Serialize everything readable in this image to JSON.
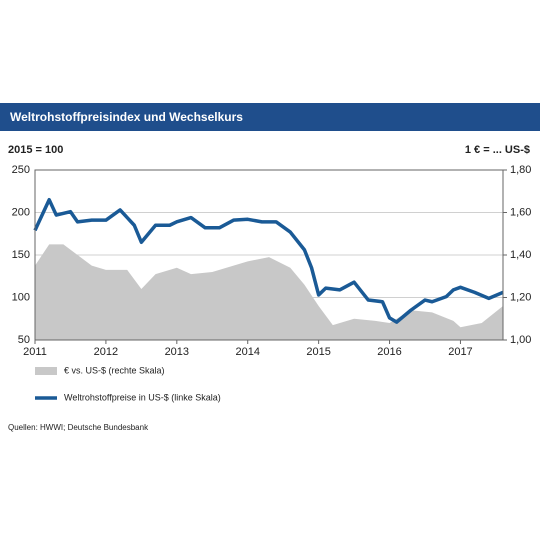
{
  "chart_data": {
    "type": "line",
    "title": "Weltrohstoffpreisindex  und Wechselkurs",
    "left_axis_label": "2015 = 100",
    "right_axis_label": "1 € = ... US-$",
    "source": "Quellen:  HWWI;  Deutsche  Bundesbank",
    "xlim": [
      2011,
      2017.6
    ],
    "xticks": [
      2011,
      2012,
      2013,
      2014,
      2015,
      2016,
      2017
    ],
    "ylim": [
      50,
      250
    ],
    "yticks": [
      50,
      100,
      150,
      200,
      250
    ],
    "y2lim": [
      1.0,
      1.8
    ],
    "y2ticks": [
      {
        "value": 1.0,
        "label": "1,00"
      },
      {
        "value": 1.2,
        "label": "1,20"
      },
      {
        "value": 1.4,
        "label": "1,40"
      },
      {
        "value": 1.6,
        "label": "1,60"
      },
      {
        "value": 1.8,
        "label": "1,80"
      }
    ],
    "grid": true,
    "series": [
      {
        "name": "€ vs. US-$ (rechte Skala)",
        "type": "area",
        "axis": "y2",
        "color": "#c8c8c8",
        "x": [
          2011.0,
          2011.2,
          2011.4,
          2011.6,
          2011.8,
          2012.0,
          2012.3,
          2012.5,
          2012.7,
          2013.0,
          2013.2,
          2013.5,
          2013.8,
          2014.0,
          2014.3,
          2014.6,
          2014.8,
          2015.0,
          2015.2,
          2015.5,
          2015.8,
          2016.0,
          2016.3,
          2016.6,
          2016.9,
          2017.0,
          2017.3,
          2017.6
        ],
        "values": [
          1.35,
          1.45,
          1.45,
          1.4,
          1.35,
          1.33,
          1.33,
          1.24,
          1.31,
          1.34,
          1.31,
          1.32,
          1.35,
          1.37,
          1.39,
          1.34,
          1.26,
          1.16,
          1.07,
          1.1,
          1.09,
          1.08,
          1.14,
          1.13,
          1.09,
          1.06,
          1.08,
          1.16
        ]
      },
      {
        "name": "Weltrohstoffpreise in US-$ (linke Skala)",
        "type": "line",
        "color": "#1a5a96",
        "x": [
          2011.0,
          2011.2,
          2011.3,
          2011.5,
          2011.6,
          2011.8,
          2012.0,
          2012.2,
          2012.4,
          2012.5,
          2012.7,
          2012.9,
          2013.0,
          2013.2,
          2013.4,
          2013.6,
          2013.8,
          2014.0,
          2014.2,
          2014.4,
          2014.6,
          2014.8,
          2014.9,
          2015.0,
          2015.1,
          2015.3,
          2015.5,
          2015.7,
          2015.9,
          2016.0,
          2016.1,
          2016.3,
          2016.5,
          2016.6,
          2016.8,
          2016.9,
          2017.0,
          2017.2,
          2017.4,
          2017.6
        ],
        "values": [
          179,
          215,
          197,
          201,
          189,
          191,
          191,
          203,
          185,
          165,
          185,
          185,
          189,
          194,
          182,
          182,
          191,
          192,
          189,
          189,
          177,
          156,
          135,
          103,
          111,
          109,
          118,
          97,
          95,
          76,
          71,
          85,
          97,
          95,
          101,
          109,
          112,
          106,
          99,
          106
        ]
      }
    ]
  }
}
